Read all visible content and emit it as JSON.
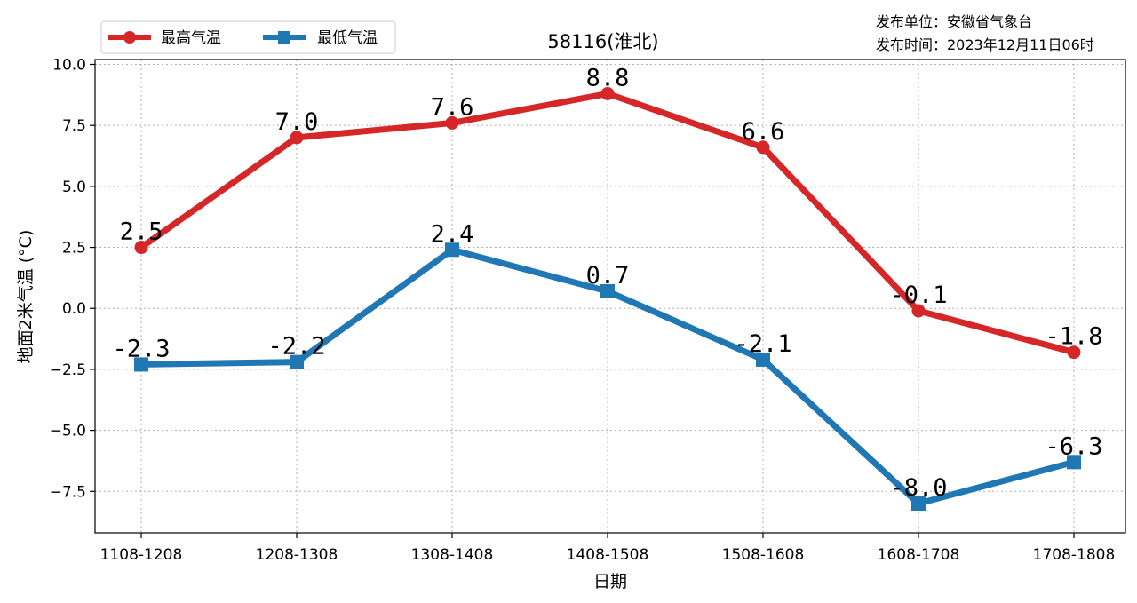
{
  "chart_data": {
    "type": "line",
    "title": "58116(淮北)",
    "xlabel": "日期",
    "ylabel": "地面2米气温 (°C)",
    "categories": [
      "1108-1208",
      "1208-1308",
      "1308-1408",
      "1408-1508",
      "1508-1608",
      "1608-1708",
      "1708-1808"
    ],
    "ylim": [
      -9.2,
      10.2
    ],
    "yticks": [
      -7.5,
      -5.0,
      -2.5,
      0.0,
      2.5,
      5.0,
      7.5,
      10.0
    ],
    "ytick_labels": [
      "−7.5",
      "−5.0",
      "−2.5",
      "0.0",
      "2.5",
      "5.0",
      "7.5",
      "10.0"
    ],
    "grid": true,
    "legend_position": "top-left",
    "series": [
      {
        "name": "最高气温",
        "color": "#d62728",
        "marker": "circle",
        "values": [
          2.5,
          7.0,
          7.6,
          8.8,
          6.6,
          -0.1,
          -1.8
        ],
        "labels": [
          "2.5",
          "7.0",
          "7.6",
          "8.8",
          "6.6",
          "-0.1",
          "-1.8"
        ]
      },
      {
        "name": "最低气温",
        "color": "#1f77b4",
        "marker": "square",
        "values": [
          -2.3,
          -2.2,
          2.4,
          0.7,
          -2.1,
          -8.0,
          -6.3
        ],
        "labels": [
          "-2.3",
          "-2.2",
          "2.4",
          "0.7",
          "-2.1",
          "-8.0",
          "-6.3"
        ]
      }
    ]
  },
  "publisher": {
    "unit": "发布单位：安徽省气象台",
    "time": "发布时间：2023年12月11日06时"
  }
}
